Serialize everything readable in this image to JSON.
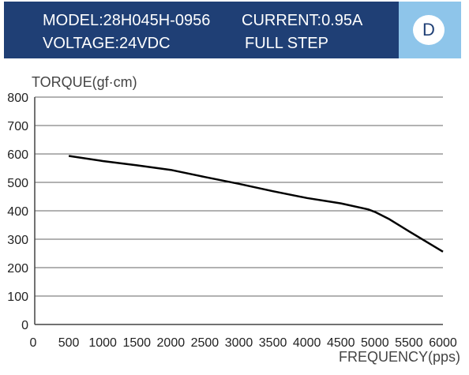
{
  "header": {
    "model": "MODEL:28H045H-0956",
    "current": "CURRENT:0.95A",
    "voltage": "VOLTAGE:24VDC",
    "step": "FULL STEP",
    "badge": "D",
    "colors": {
      "header_bg": "#1f3f75",
      "badge_bg": "#8ec5ea"
    }
  },
  "chart_data": {
    "type": "line",
    "ylabel": "TORQUE(gf·cm)",
    "xlabel": "FREQUENCY(pps)",
    "xlim": [
      0,
      6000
    ],
    "ylim": [
      0,
      800
    ],
    "xticks": [
      0,
      500,
      1000,
      1500,
      2000,
      2500,
      3000,
      3500,
      4000,
      4500,
      5000,
      5500,
      6000
    ],
    "yticks": [
      0,
      100,
      200,
      300,
      400,
      500,
      600,
      700,
      800
    ],
    "grid": "horizontal",
    "series": [
      {
        "color": "#000000",
        "x": [
          500,
          1000,
          1500,
          2000,
          2500,
          3000,
          3500,
          4000,
          4500,
          4900,
          5000,
          5200,
          5500,
          6000
        ],
        "y": [
          593,
          575,
          560,
          544,
          519,
          495,
          469,
          445,
          426,
          405,
          396,
          372,
          328,
          256
        ]
      }
    ]
  }
}
